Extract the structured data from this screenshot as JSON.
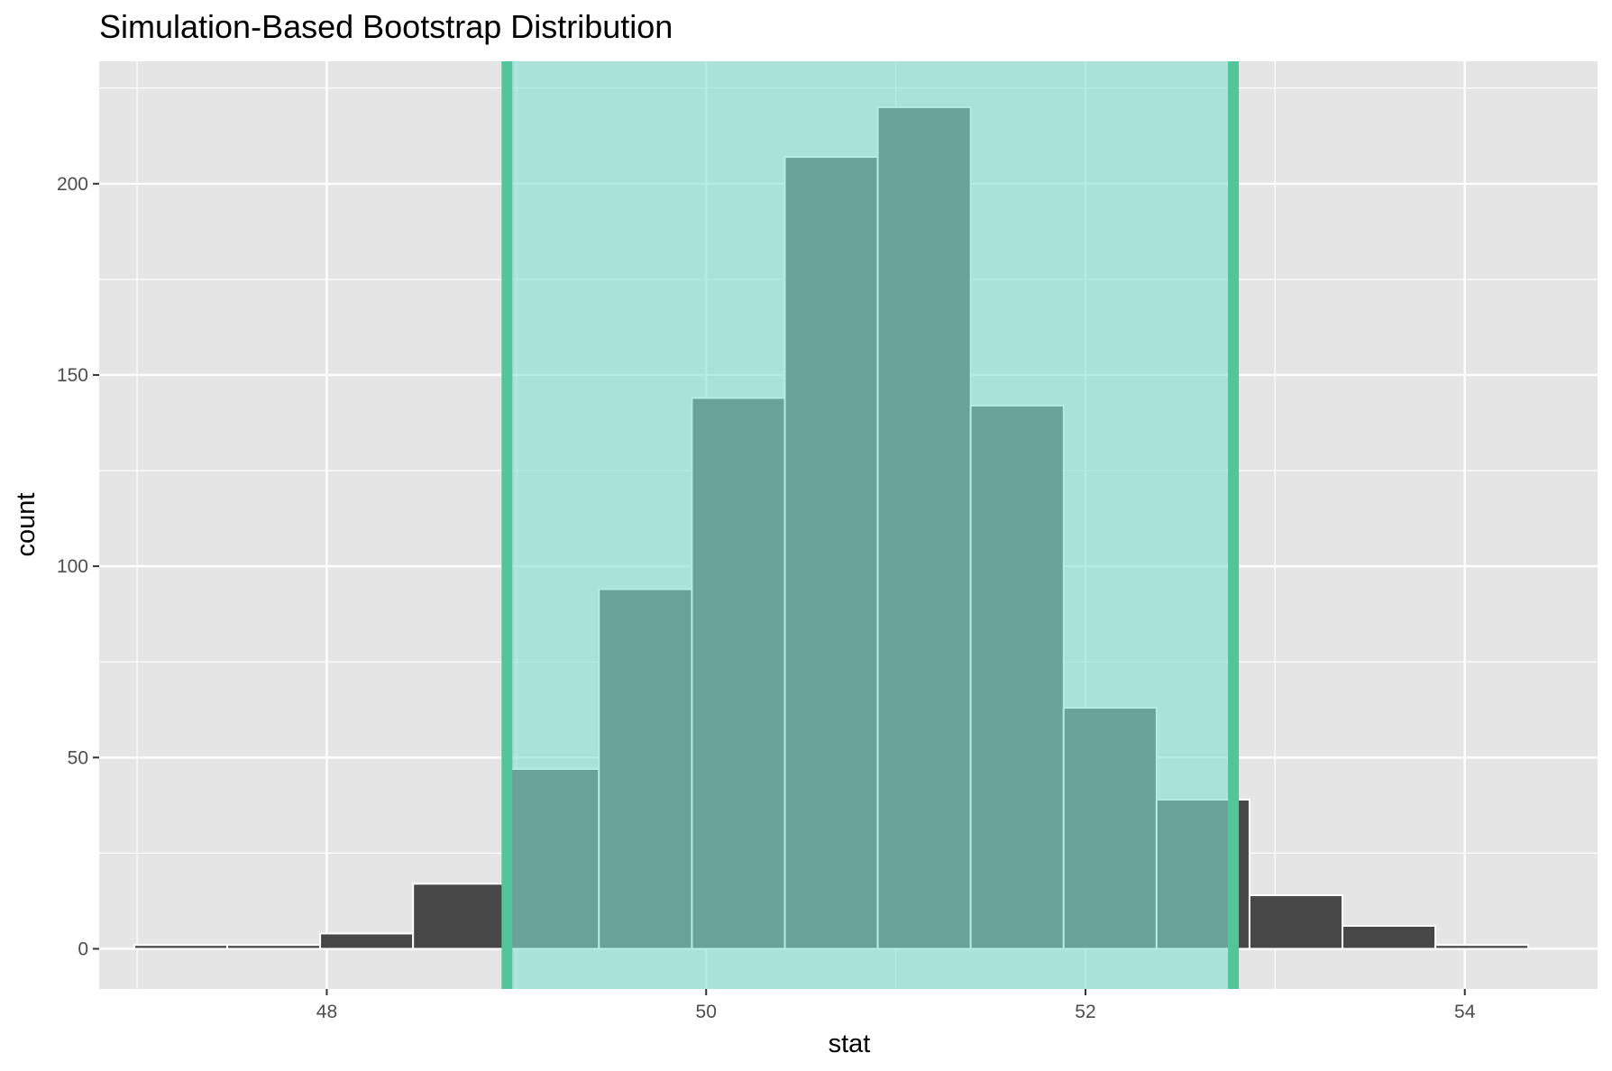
{
  "chart_data": {
    "type": "bar",
    "title": "Simulation-Based Bootstrap Distribution",
    "xlabel": "stat",
    "ylabel": "count",
    "xlim": [
      46.8,
      54.7
    ],
    "ylim": [
      -10.5,
      232
    ],
    "x_ticks": [
      48,
      50,
      52,
      54
    ],
    "y_ticks": [
      0,
      50,
      100,
      150,
      200
    ],
    "grid": true,
    "bin_width": 0.49,
    "bins": [
      {
        "x": 47.23,
        "count": 1
      },
      {
        "x": 47.72,
        "count": 1
      },
      {
        "x": 48.21,
        "count": 4
      },
      {
        "x": 48.7,
        "count": 17
      },
      {
        "x": 49.19,
        "count": 47
      },
      {
        "x": 49.68,
        "count": 94
      },
      {
        "x": 50.17,
        "count": 144
      },
      {
        "x": 50.66,
        "count": 207
      },
      {
        "x": 51.15,
        "count": 220
      },
      {
        "x": 51.64,
        "count": 142
      },
      {
        "x": 52.13,
        "count": 63
      },
      {
        "x": 52.62,
        "count": 39
      },
      {
        "x": 53.11,
        "count": 14
      },
      {
        "x": 53.6,
        "count": 6
      },
      {
        "x": 54.09,
        "count": 1
      }
    ],
    "confidence_interval": {
      "lower": 48.95,
      "upper": 52.78
    },
    "colors": {
      "panel_background": "#e5e5e5",
      "grid": "#ffffff",
      "bar_fill": "#474747",
      "bar_outline": "#ffffff",
      "ci_shade": "#80e0d1",
      "ci_line": "#52c69a",
      "bar_in_ci": "#3f9f90"
    }
  }
}
